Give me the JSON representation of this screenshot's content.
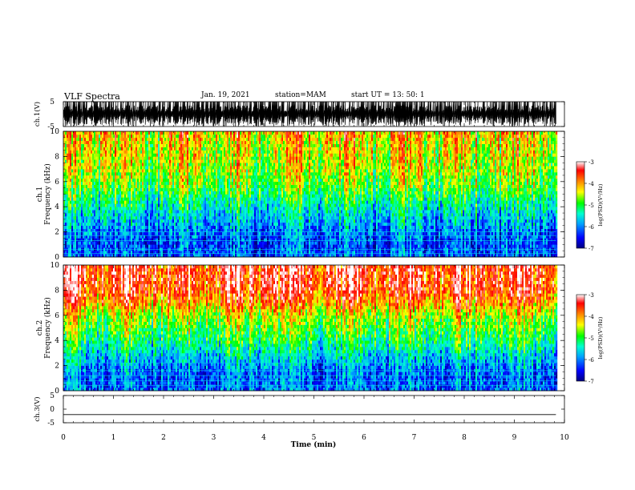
{
  "header": {
    "title": "VLF Spectra",
    "date": "Jan. 19, 2021",
    "station": "station=MAM",
    "start_ut": "start  UT =   13: 50: 1"
  },
  "xaxis": {
    "label": "Time (min)",
    "range": [
      0,
      10
    ],
    "ticks": [
      "0",
      "1",
      "2",
      "3",
      "4",
      "5",
      "6",
      "7",
      "8",
      "9",
      "10"
    ],
    "data_end": 9.83
  },
  "colors": {
    "scale_stops": [
      "#000080",
      "#0000ff",
      "#00a0ff",
      "#00ffd0",
      "#00ff00",
      "#ffff00",
      "#ff8000",
      "#ff0000",
      "#ffffff"
    ]
  },
  "chart_data": [
    {
      "type": "line",
      "panel": "ch1-waveform",
      "ylabel": "ch.1(V)",
      "ylim": [
        -5,
        5
      ],
      "yticks": [
        "5",
        "-5"
      ],
      "description_values": {
        "signal": "impulsive waveform saturating between -5 and 5 V",
        "baseline_v": 0
      }
    },
    {
      "type": "heatmap",
      "panel": "ch1-spectrogram",
      "ylabel_channel": "ch.1",
      "ylabel": "Frequency (kHz)",
      "ylim": [
        0,
        10
      ],
      "yticks": [
        "0",
        "2",
        "4",
        "6",
        "8",
        "10"
      ],
      "colorbar": {
        "label": "log(PSD)(V²/Hz)",
        "range": [
          -7,
          -3
        ],
        "ticks": [
          "-3",
          "-4",
          "-5",
          "-6",
          "-7"
        ]
      },
      "profile": {
        "freq_khz": [
          0,
          1,
          2,
          3,
          4,
          5,
          6,
          7,
          8,
          9,
          10
        ],
        "log_psd": [
          -6.2,
          -6.3,
          -6.1,
          -5.8,
          -5.5,
          -5.1,
          -4.8,
          -4.6,
          -4.5,
          -4.4,
          -4.2
        ]
      },
      "lines_khz": [
        0.3,
        0.6,
        1.3,
        1.7,
        2.0
      ]
    },
    {
      "type": "heatmap",
      "panel": "ch2-spectrogram",
      "ylabel_channel": "ch.2",
      "ylabel": "Frequency (kHz)",
      "ylim": [
        0,
        10
      ],
      "yticks": [
        "0",
        "2",
        "4",
        "6",
        "8",
        "10"
      ],
      "colorbar": {
        "label": "log(PSD)(V²/Hz)",
        "range": [
          -7,
          -3
        ],
        "ticks": [
          "-3",
          "-4",
          "-5",
          "-6",
          "-7"
        ]
      },
      "profile": {
        "freq_khz": [
          0,
          1,
          2,
          3,
          4,
          5,
          6,
          7,
          8,
          9,
          10
        ],
        "log_psd": [
          -6.1,
          -6.2,
          -6.0,
          -5.6,
          -5.2,
          -4.9,
          -4.6,
          -4.0,
          -3.6,
          -3.5,
          -3.5
        ]
      },
      "lines_khz": [
        0.4,
        0.8,
        1.2,
        1.6,
        2.2
      ]
    },
    {
      "type": "line",
      "panel": "ch3-waveform",
      "ylabel": "ch.3(V)",
      "ylim": [
        -5,
        5
      ],
      "yticks": [
        "5",
        "0",
        "-5"
      ],
      "x": [
        0,
        9.83
      ],
      "y": [
        -2,
        -2
      ]
    }
  ]
}
